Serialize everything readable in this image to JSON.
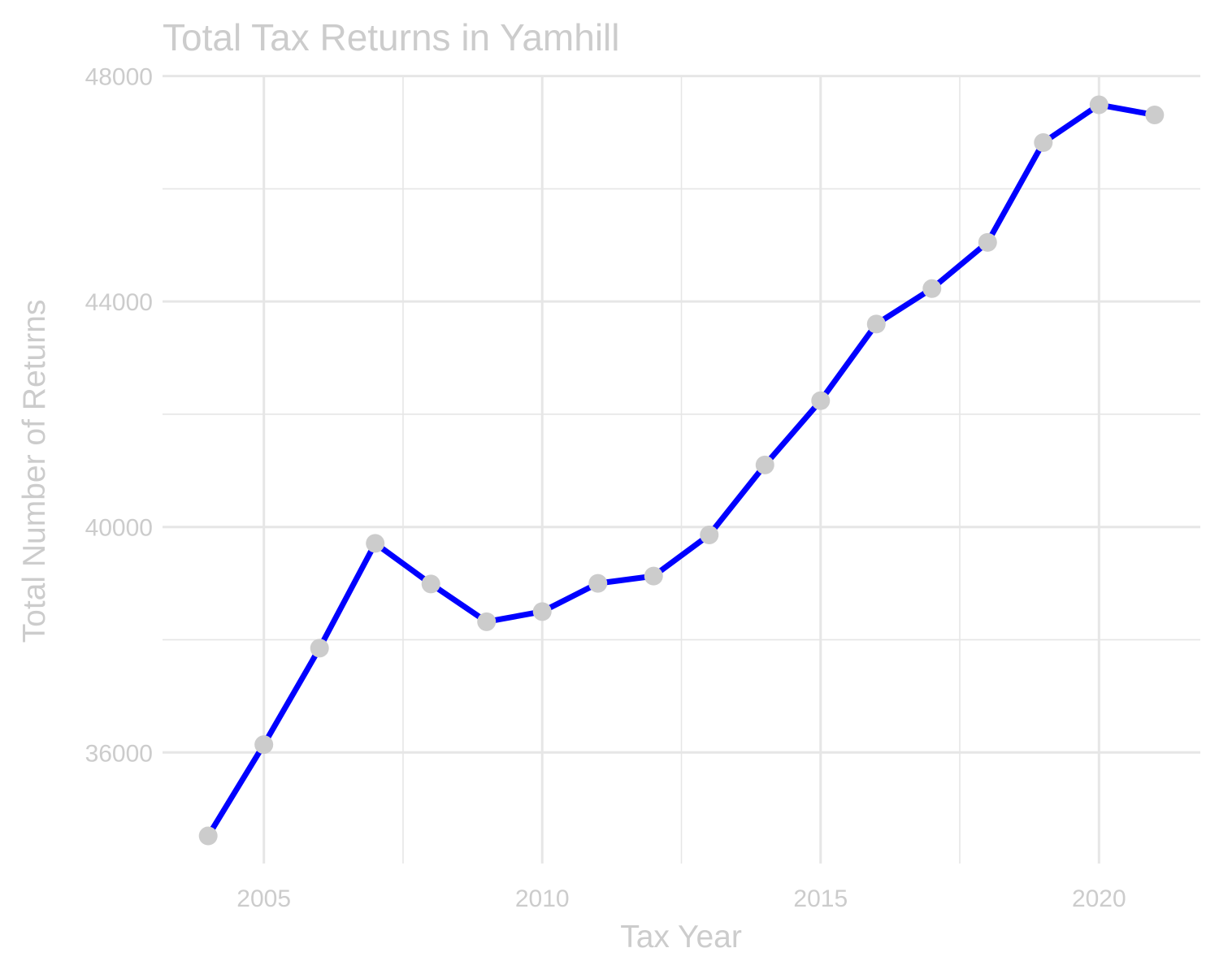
{
  "chart_data": {
    "type": "line",
    "title": "Total Tax Returns in Yamhill",
    "xlabel": "Tax Year",
    "ylabel": "Total Number of Returns",
    "x": [
      2004,
      2005,
      2006,
      2007,
      2008,
      2009,
      2010,
      2011,
      2012,
      2013,
      2014,
      2015,
      2016,
      2017,
      2018,
      2019,
      2020,
      2021
    ],
    "series": [
      {
        "values": [
          34520,
          36140,
          37850,
          39710,
          38990,
          38320,
          38500,
          39000,
          39130,
          39860,
          41100,
          42240,
          43600,
          44230,
          45050,
          46820,
          47490,
          47310
        ]
      }
    ],
    "xlim": [
      2003.18,
      2021.82
    ],
    "ylim": [
      34030,
      47980
    ],
    "xticks": [
      "2005",
      "2010",
      "2015",
      "2020"
    ],
    "yticks": [
      "36000",
      "40000",
      "44000",
      "48000"
    ],
    "grid": true,
    "legend": "none",
    "colors": {
      "line": "#0000ff",
      "points": "#cccccc",
      "grid": "#e6e6e6",
      "text": "#cccccc"
    }
  }
}
